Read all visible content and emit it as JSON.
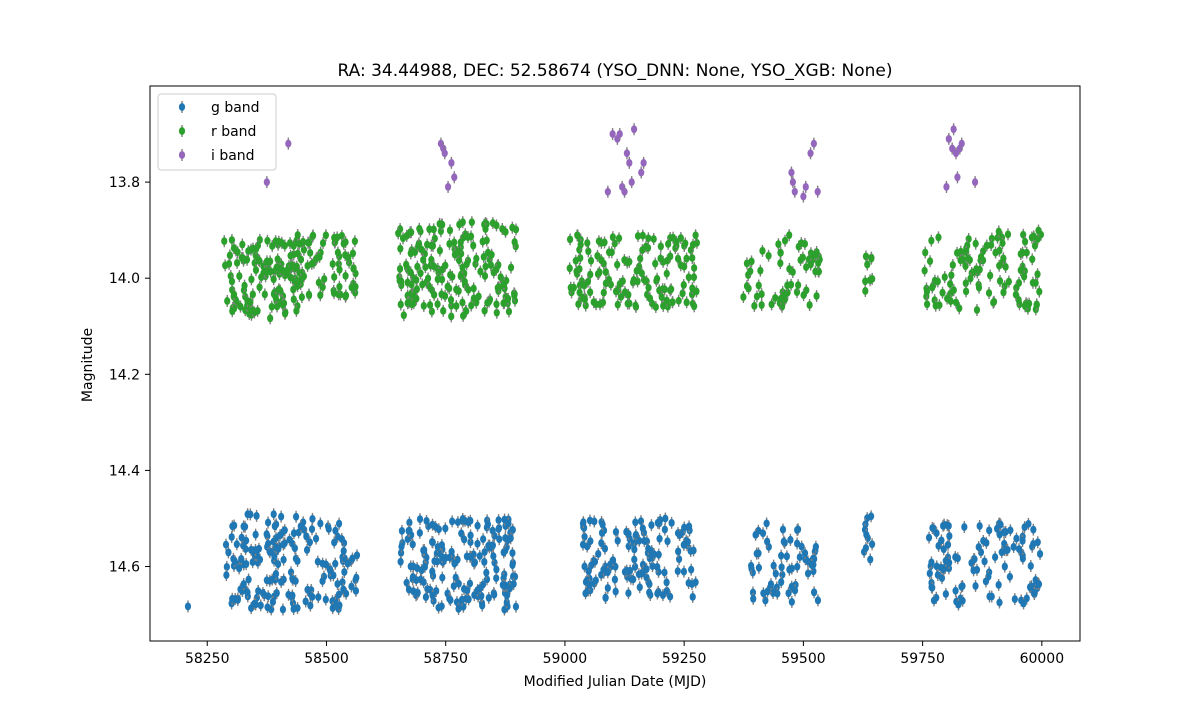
{
  "chart_data": {
    "type": "scatter",
    "title": "RA: 34.44988, DEC: 52.58674 (YSO_DNN: None, YSO_XGB: None)",
    "xlabel": "Modified Julian Date (MJD)",
    "ylabel": "Magnitude",
    "xlim": [
      58130,
      60080
    ],
    "ylim": [
      14.755,
      13.6
    ],
    "y_inverted": true,
    "x_ticks": [
      58250,
      58500,
      58750,
      59000,
      59250,
      59500,
      59750,
      60000
    ],
    "x_tick_labels": [
      "58250",
      "58500",
      "58750",
      "59000",
      "59250",
      "59500",
      "59750",
      "60000"
    ],
    "y_ticks": [
      13.8,
      14.0,
      14.2,
      14.4,
      14.6
    ],
    "y_tick_labels": [
      "13.8",
      "14.0",
      "14.2",
      "14.4",
      "14.6"
    ],
    "grid": false,
    "legend_position": "top-left",
    "error_bars": true,
    "series": [
      {
        "name": "g band",
        "color": "#1f77b4",
        "segments": [
          {
            "x0": 58205,
            "x1": 58212,
            "ymin": 14.68,
            "ymax": 14.69,
            "n": 1
          },
          {
            "x0": 58288,
            "x1": 58440,
            "ymin": 14.49,
            "ymax": 14.69,
            "n": 110
          },
          {
            "x0": 58425,
            "x1": 58565,
            "ymin": 14.5,
            "ymax": 14.69,
            "n": 70
          },
          {
            "x0": 58655,
            "x1": 58900,
            "ymin": 14.5,
            "ymax": 14.69,
            "n": 175
          },
          {
            "x0": 59035,
            "x1": 59275,
            "ymin": 14.5,
            "ymax": 14.67,
            "n": 130
          },
          {
            "x0": 59390,
            "x1": 59535,
            "ymin": 14.51,
            "ymax": 14.68,
            "n": 60
          },
          {
            "x0": 59620,
            "x1": 59645,
            "ymin": 14.49,
            "ymax": 14.6,
            "n": 10
          },
          {
            "x0": 59760,
            "x1": 60000,
            "ymin": 14.51,
            "ymax": 14.68,
            "n": 110
          }
        ]
      },
      {
        "name": "r band",
        "color": "#2ca02c",
        "segments": [
          {
            "x0": 58285,
            "x1": 58440,
            "ymin": 13.92,
            "ymax": 14.09,
            "n": 120
          },
          {
            "x0": 58425,
            "x1": 58565,
            "ymin": 13.91,
            "ymax": 14.04,
            "n": 70
          },
          {
            "x0": 58650,
            "x1": 58900,
            "ymin": 13.88,
            "ymax": 14.08,
            "n": 180
          },
          {
            "x0": 59010,
            "x1": 59280,
            "ymin": 13.91,
            "ymax": 14.06,
            "n": 140
          },
          {
            "x0": 59370,
            "x1": 59535,
            "ymin": 13.91,
            "ymax": 14.06,
            "n": 60
          },
          {
            "x0": 59620,
            "x1": 59645,
            "ymin": 13.94,
            "ymax": 14.05,
            "n": 8
          },
          {
            "x0": 59750,
            "x1": 60000,
            "ymin": 13.9,
            "ymax": 14.07,
            "n": 110
          }
        ]
      },
      {
        "name": "i band",
        "color": "#9467bd",
        "points": [
          [
            58375,
            13.8
          ],
          [
            58420,
            13.72
          ],
          [
            58740,
            13.72
          ],
          [
            58745,
            13.73
          ],
          [
            58748,
            13.74
          ],
          [
            58755,
            13.81
          ],
          [
            58762,
            13.76
          ],
          [
            58768,
            13.79
          ],
          [
            59090,
            13.82
          ],
          [
            59100,
            13.7
          ],
          [
            59110,
            13.71
          ],
          [
            59115,
            13.7
          ],
          [
            59120,
            13.81
          ],
          [
            59125,
            13.82
          ],
          [
            59130,
            13.74
          ],
          [
            59135,
            13.76
          ],
          [
            59140,
            13.8
          ],
          [
            59145,
            13.69
          ],
          [
            59160,
            13.78
          ],
          [
            59165,
            13.76
          ],
          [
            59475,
            13.78
          ],
          [
            59478,
            13.8
          ],
          [
            59482,
            13.82
          ],
          [
            59500,
            13.83
          ],
          [
            59505,
            13.81
          ],
          [
            59515,
            13.74
          ],
          [
            59522,
            13.72
          ],
          [
            59530,
            13.82
          ],
          [
            59800,
            13.81
          ],
          [
            59805,
            13.71
          ],
          [
            59812,
            13.73
          ],
          [
            59815,
            13.69
          ],
          [
            59820,
            13.74
          ],
          [
            59823,
            13.79
          ],
          [
            59828,
            13.73
          ],
          [
            59832,
            13.72
          ],
          [
            59860,
            13.8
          ]
        ]
      }
    ]
  }
}
